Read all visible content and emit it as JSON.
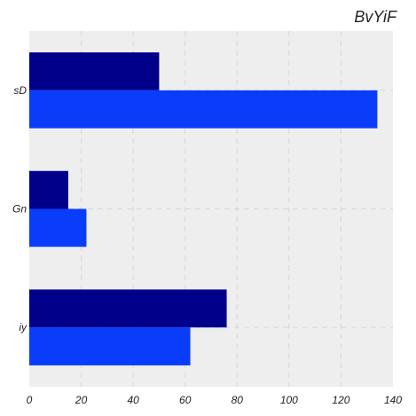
{
  "chart_data": {
    "type": "bar",
    "orientation": "horizontal",
    "title": "BvYiF",
    "categories": [
      "sD",
      "Gn",
      "iy"
    ],
    "series": [
      {
        "values": [
          50,
          15,
          76
        ],
        "color": "#00008b"
      },
      {
        "values": [
          134,
          22,
          62
        ],
        "color": "#0a3dfa"
      }
    ],
    "xlim": [
      0,
      140
    ],
    "xticks": [
      0,
      20,
      40,
      60,
      80,
      100,
      120,
      140
    ],
    "xlabel": "",
    "ylabel": "",
    "grid": true,
    "background": "#eeeeee"
  }
}
